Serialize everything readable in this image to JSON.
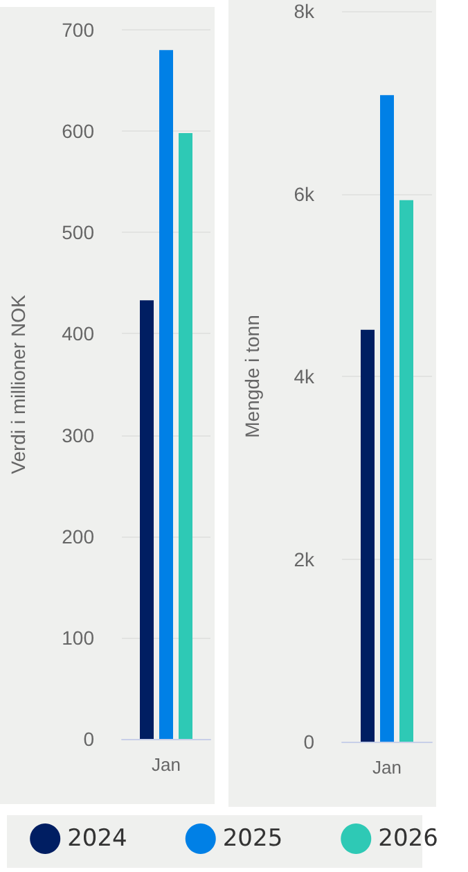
{
  "chart_data": [
    {
      "type": "bar",
      "ylabel": "Verdi i millioner NOK",
      "categories": [
        "Jan"
      ],
      "series": [
        {
          "name": "2024",
          "color": "#001e62",
          "values": [
            433
          ]
        },
        {
          "name": "2025",
          "color": "#0080e6",
          "values": [
            680
          ]
        },
        {
          "name": "2026",
          "color": "#2ec9b5",
          "values": [
            598
          ]
        }
      ],
      "ylim": [
        0,
        700
      ],
      "yticks": [
        0,
        100,
        200,
        300,
        400,
        500,
        600,
        700
      ],
      "grid": "y",
      "legend": "bottom"
    },
    {
      "type": "bar",
      "ylabel": "Mengde i tonn",
      "categories": [
        "Jan"
      ],
      "series": [
        {
          "name": "2024",
          "color": "#001e62",
          "values": [
            4510
          ]
        },
        {
          "name": "2025",
          "color": "#0080e6",
          "values": [
            7080
          ]
        },
        {
          "name": "2026",
          "color": "#2ec9b5",
          "values": [
            5930
          ]
        }
      ],
      "ylim": [
        0,
        8000
      ],
      "yticks": [
        0,
        {
          "value": 2000,
          "label": "2k"
        },
        {
          "value": 4000,
          "label": "4k"
        },
        {
          "value": 6000,
          "label": "6k"
        },
        {
          "value": 8000,
          "label": "8k"
        }
      ],
      "grid": "y",
      "legend": false
    }
  ]
}
